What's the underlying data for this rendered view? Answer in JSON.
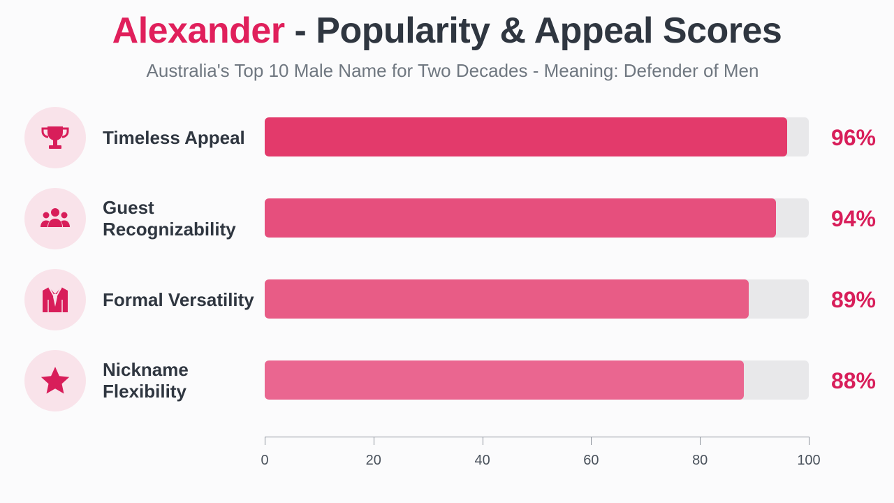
{
  "title_name": "Alexander",
  "title_rest": "- Popularity & Appeal Scores",
  "subtitle": "Australia's Top 10 Male Name for Two Decades - Meaning: Defender of Men",
  "accent_color": "#e01f5b",
  "rows": [
    {
      "label": "Timeless Appeal",
      "value_label": "96%",
      "icon": "trophy-icon",
      "color": "#e33a6b"
    },
    {
      "label": "Guest Recognizability",
      "value_label": "94%",
      "icon": "group-icon",
      "color": "#e64f7d"
    },
    {
      "label": "Formal Versatility",
      "value_label": "89%",
      "icon": "suit-icon",
      "color": "#e85c86"
    },
    {
      "label": "Nickname Flexibility",
      "value_label": "88%",
      "icon": "star-icon",
      "color": "#ea6690"
    }
  ],
  "chart_data": {
    "type": "bar",
    "orientation": "horizontal",
    "title": "Alexander - Popularity & Appeal Scores",
    "subtitle": "Australia's Top 10 Male Name for Two Decades - Meaning: Defender of Men",
    "categories": [
      "Timeless Appeal",
      "Guest Recognizability",
      "Formal Versatility",
      "Nickname Flexibility"
    ],
    "values": [
      96,
      94,
      89,
      88
    ],
    "xlim": [
      0,
      100
    ],
    "xticks": [
      "0",
      "20",
      "40",
      "60",
      "80",
      "100"
    ],
    "xlabel": "",
    "ylabel": "",
    "grid": false,
    "legend": "none"
  }
}
